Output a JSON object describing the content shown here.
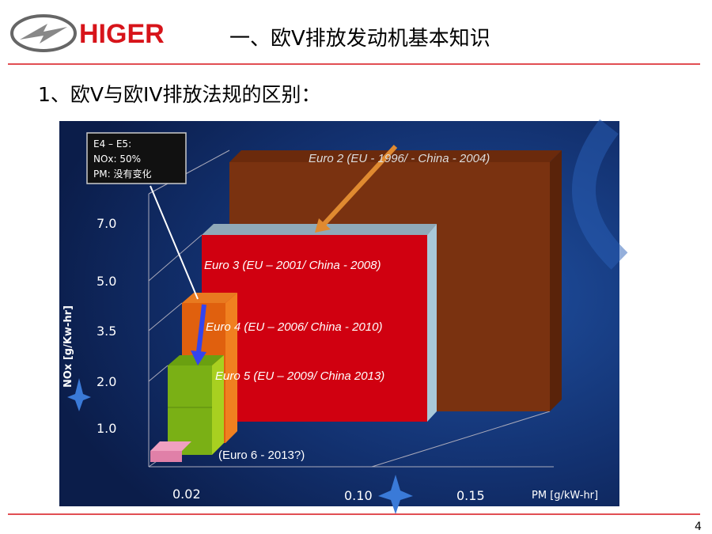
{
  "header": {
    "logo": "HIGER",
    "title": "一、欧V排放发动机基本知识"
  },
  "subtitle": "1、欧V与欧IV排放法规的区别：",
  "figure": {
    "callout": [
      "E4 – E5:",
      "NOx: 50%",
      "PM: 没有变化"
    ],
    "labels": [
      "Euro 2 (EU - 1996/ - China - 2004)",
      "Euro 3 (EU – 2001/ China - 2008)",
      "Euro 4  (EU – 2006/ China - 2010)",
      "Euro 5  (EU – 2009/ China 2013)",
      "(Euro 6 - 2013?)"
    ],
    "y_axis": {
      "label": "NOx  [g/Kw-hr]",
      "ticks": [
        "7.0",
        "5.0",
        "3.5",
        "2.0",
        "1.0"
      ]
    },
    "x_axis": {
      "label": "PM [g/kW-hr]",
      "ticks": [
        "0.02",
        "0.10",
        "0.15"
      ]
    }
  },
  "page_number": "4"
}
